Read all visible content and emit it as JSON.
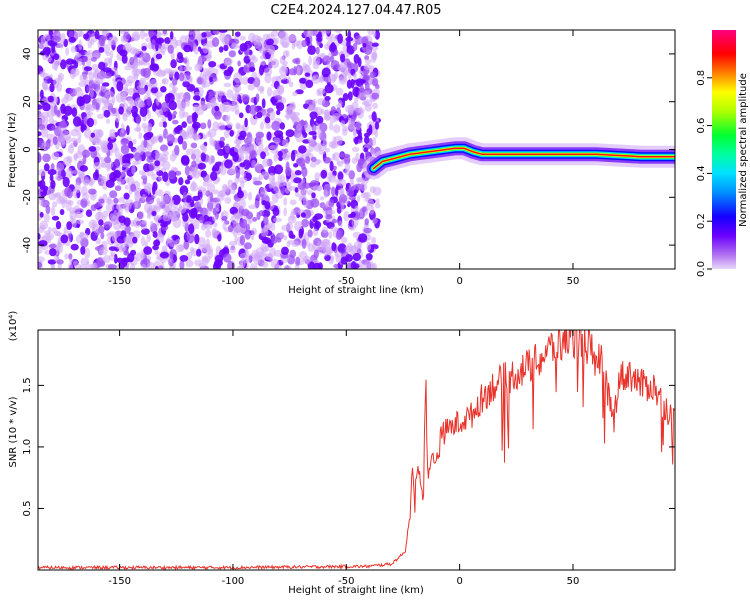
{
  "title": "C2E4.2024.127.04.47.R05",
  "colors": {
    "signal": "#e8322a",
    "scatter": "#8a2be2",
    "colormap": [
      "#c8a0f0",
      "#7a00ff",
      "#0000ff",
      "#00c8ff",
      "#00ff64",
      "#ffff00",
      "#ff0000",
      "#ff0080"
    ]
  },
  "chart_data": [
    {
      "type": "heatmap",
      "name": "spectrogram",
      "xlabel": "Height of straight line (km)",
      "ylabel": "Frequency (Hz)",
      "xlim": [
        -186,
        95
      ],
      "ylim": [
        -50,
        50
      ],
      "x_ticks": [
        -150,
        -100,
        -50,
        0,
        50
      ],
      "y_ticks": [
        -40,
        -20,
        0,
        20,
        40
      ],
      "noise_region_x": [
        -186,
        -38
      ],
      "ridge": {
        "x": [
          -38,
          -34,
          -30,
          -26,
          -22,
          -18,
          -14,
          -10,
          -6,
          -2,
          2,
          6,
          10,
          20,
          40,
          60,
          80,
          95
        ],
        "y": [
          -8,
          -5,
          -4,
          -3,
          -2,
          -1.5,
          -1,
          -0.5,
          0,
          0.5,
          0.5,
          -1,
          -2,
          -2,
          -2,
          -2,
          -3,
          -3
        ]
      },
      "colorbar": {
        "label": "Normalized spectral amplitude",
        "range": [
          0,
          1
        ],
        "ticks": [
          0.0,
          0.2,
          0.4,
          0.6,
          0.8
        ]
      }
    },
    {
      "type": "line",
      "name": "snr",
      "xlabel": "Height of straight line (km)",
      "ylabel": "SNR (10 * v/v)",
      "y_multiplier": "(x10⁴)",
      "xlim": [
        -186,
        95
      ],
      "ylim": [
        0,
        1.95
      ],
      "x_ticks": [
        -150,
        -100,
        -50,
        0,
        50
      ],
      "y_ticks": [
        0.5,
        1.0,
        1.5
      ],
      "y_tick_labels": [
        "0.5",
        "1.0",
        "1.5"
      ],
      "series": [
        {
          "x": [
            -186,
            -100,
            -40,
            -30,
            -24,
            -22,
            -21,
            -20,
            -18,
            -16,
            -15,
            -14,
            -12,
            -10,
            -8,
            -5,
            0,
            5,
            10,
            15,
            20,
            25,
            30,
            35,
            40,
            45,
            50,
            55,
            58,
            60,
            62,
            65,
            68,
            70,
            75,
            80,
            85,
            90,
            95
          ],
          "y": [
            0.02,
            0.02,
            0.03,
            0.05,
            0.15,
            0.45,
            0.8,
            0.65,
            0.85,
            0.55,
            1.6,
            0.7,
            0.95,
            0.9,
            1.1,
            1.15,
            1.2,
            1.25,
            1.4,
            1.5,
            1.55,
            1.6,
            1.65,
            1.7,
            1.8,
            1.85,
            1.9,
            1.85,
            1.8,
            1.6,
            1.75,
            1.5,
            1.2,
            1.55,
            1.6,
            1.5,
            1.5,
            1.35,
            1.2
          ]
        }
      ]
    }
  ]
}
